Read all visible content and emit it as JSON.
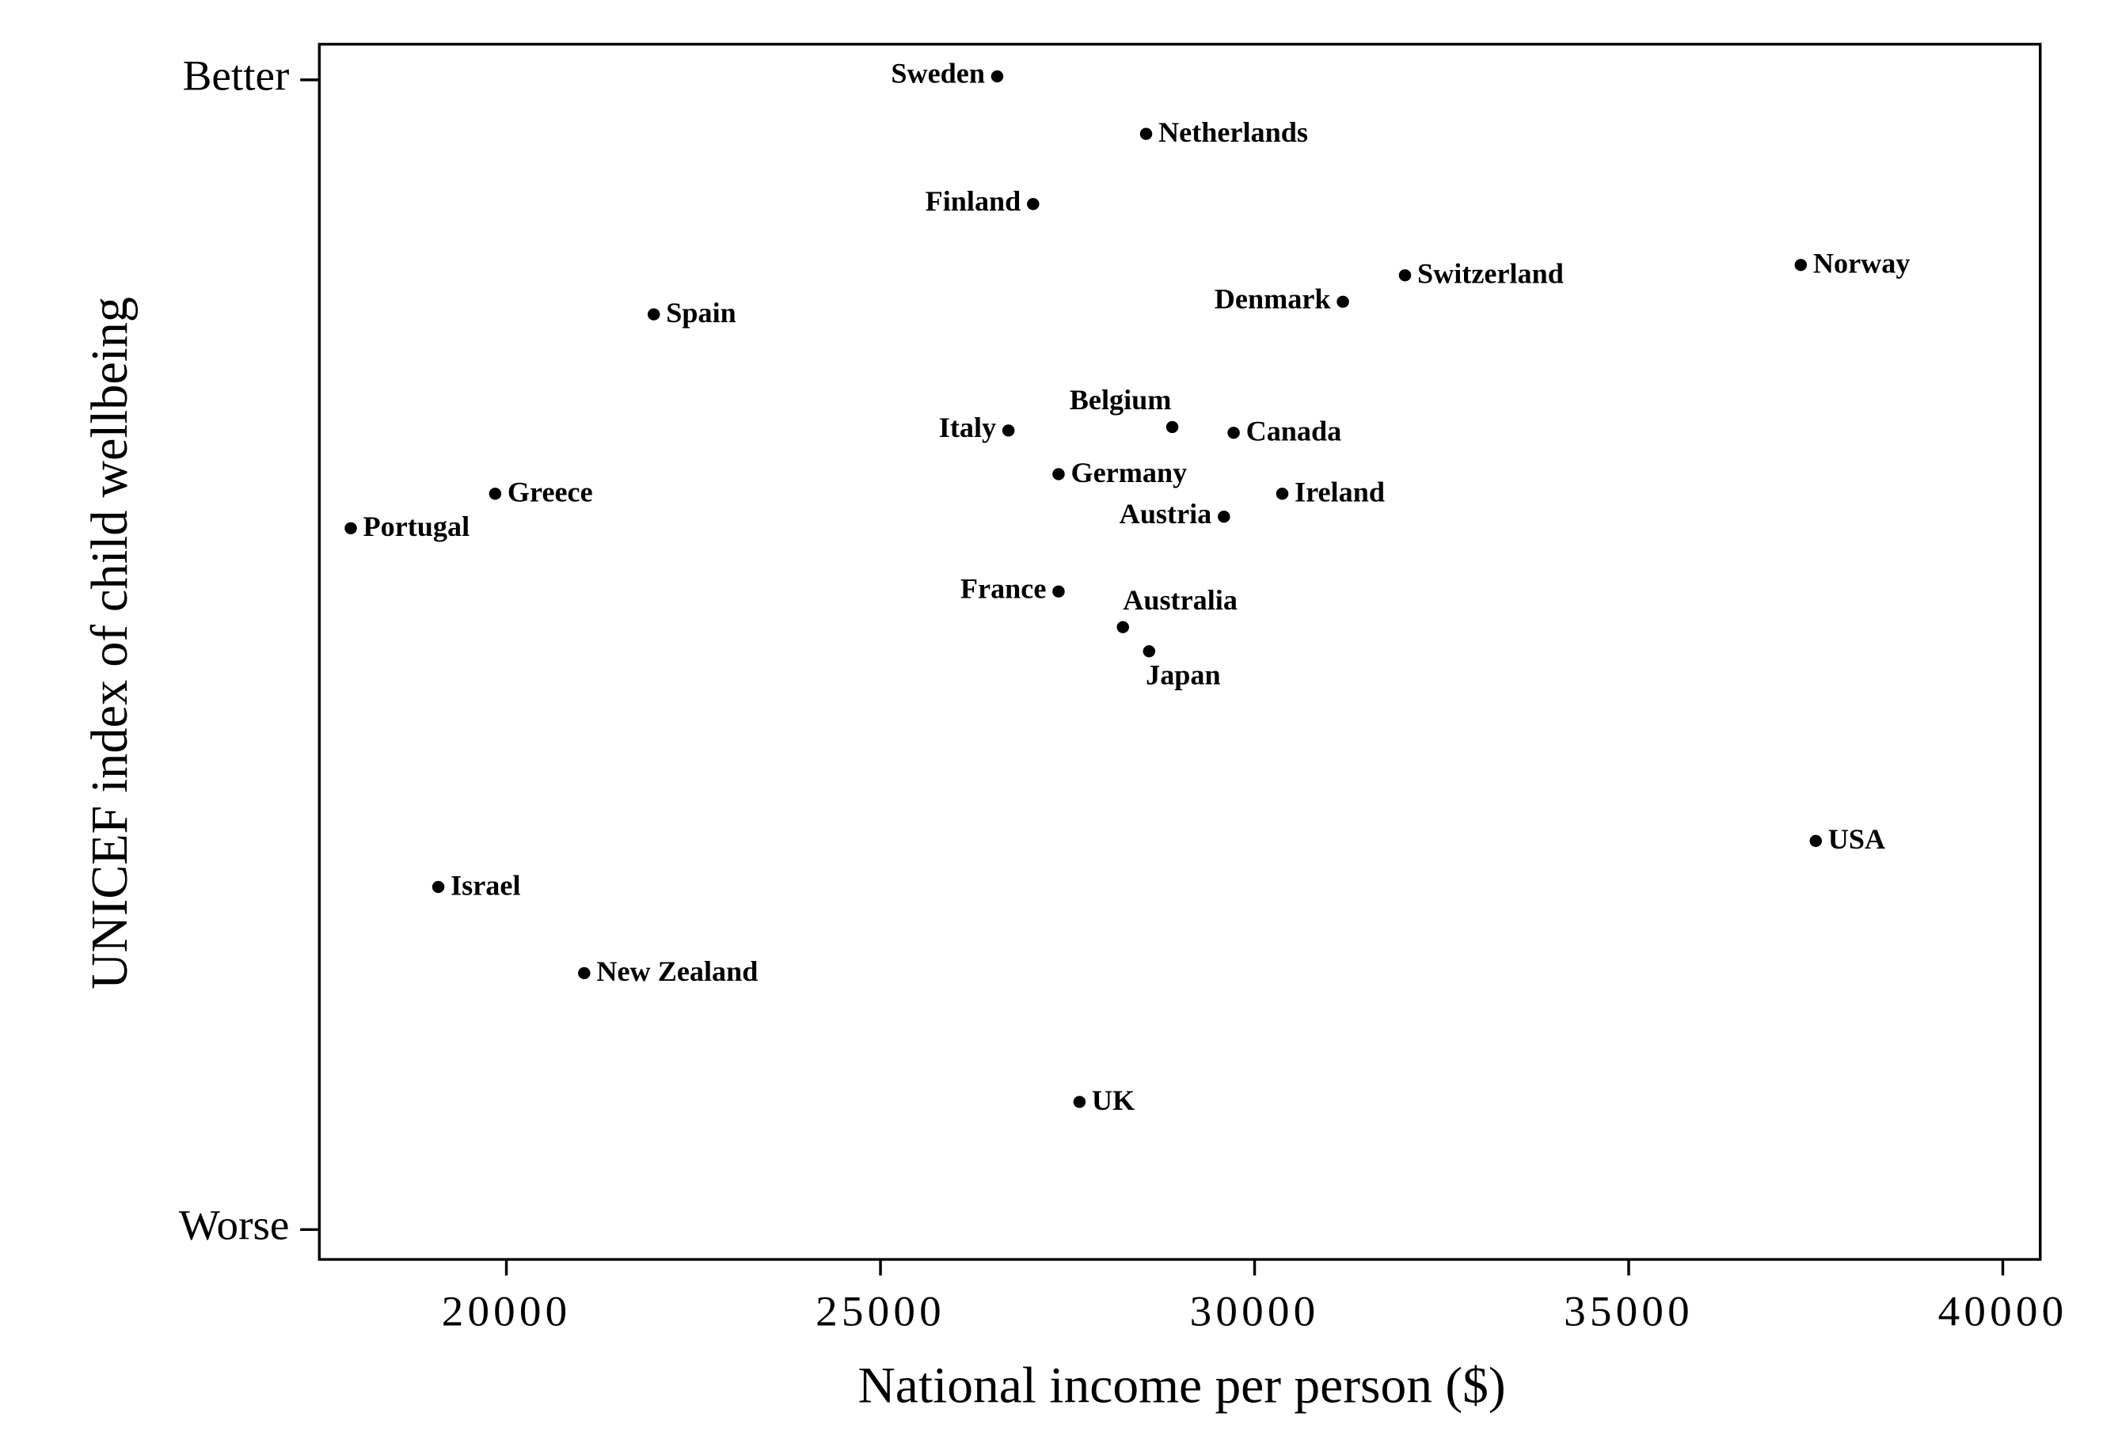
{
  "chart_data": {
    "type": "scatter",
    "xlabel": "National income per person ($)",
    "ylabel": "UNICEF index of child wellbeing",
    "xlim": [
      17500,
      40500
    ],
    "ylim": [
      -2.6,
      103.1
    ],
    "xticks": [
      20000,
      25000,
      30000,
      35000,
      40000
    ],
    "yticks": [
      {
        "value": 0,
        "label": "Worse"
      },
      {
        "value": 100,
        "label": "Better"
      }
    ],
    "color": "#000000",
    "labels": [
      "Sweden",
      "Netherlands",
      "Finland",
      "Switzerland",
      "Norway",
      "Denmark",
      "Spain",
      "Belgium",
      "Italy",
      "Canada",
      "Germany",
      "Ireland",
      "Greece",
      "Austria",
      "Portugal",
      "France",
      "Australia",
      "Japan",
      "USA",
      "Israel",
      "New Zealand",
      "UK"
    ],
    "x": [
      26560,
      28550,
      27040,
      32010,
      37300,
      31180,
      21970,
      28900,
      26710,
      29720,
      27380,
      30370,
      19850,
      29590,
      17920,
      27380,
      28240,
      28590,
      37500,
      19090,
      21040,
      27660
    ],
    "y": [
      100.3,
      95.3,
      89.2,
      83.0,
      83.9,
      80.7,
      79.6,
      69.8,
      69.5,
      69.3,
      65.7,
      64.0,
      64.0,
      62.0,
      61.0,
      55.5,
      52.4,
      50.3,
      33.8,
      29.8,
      22.3,
      11.1
    ]
  }
}
